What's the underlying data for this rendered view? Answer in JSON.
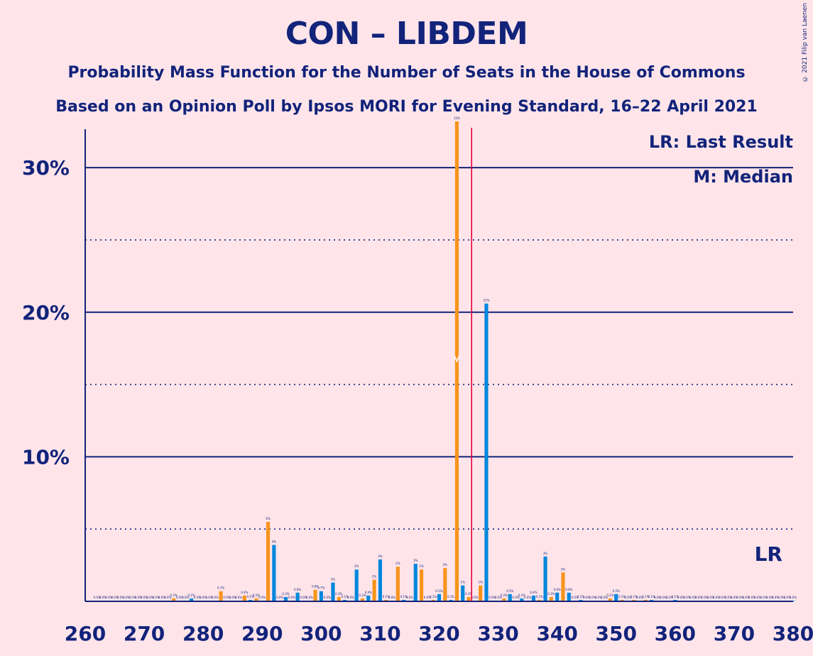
{
  "header": {
    "title": "CON – LIBDEM",
    "subtitle1": "Probability Mass Function for the Number of Seats in the House of Commons",
    "subtitle2": "Based on an Opinion Poll by Ipsos MORI for Evening Standard, 16–22 April 2021",
    "copyright": "© 2021 Filip van Laenen"
  },
  "chart_data": {
    "type": "bar",
    "title": "CON – LIBDEM",
    "xlim": [
      260,
      380
    ],
    "ylim": [
      0,
      36
    ],
    "x_ticks": [
      260,
      270,
      280,
      290,
      300,
      310,
      320,
      330,
      340,
      350,
      360,
      370,
      380
    ],
    "x_tick_labels": [
      "260",
      "270",
      "280",
      "290",
      "300",
      "310",
      "320",
      "330",
      "340",
      "350",
      "360",
      "370",
      "380"
    ],
    "y_ticks": [
      10,
      20,
      30
    ],
    "y_tick_labels": [
      "10%",
      "20%",
      "30%"
    ],
    "minor_gridlines": [
      5,
      15,
      25
    ],
    "colors": {
      "orange": "#F7941D",
      "blue": "#0087DC",
      "axis": "#12237A",
      "last_result": "#E4003B",
      "background": "#FFE5EA"
    },
    "last_result_seat": 326,
    "median_seat": 323,
    "legend": {
      "position": "top-right",
      "lr_text": "LR: Last Result",
      "m_text": "M: Median"
    },
    "lr_marker_label": "LR",
    "points": [
      {
        "x": 262,
        "y": 0.0
      },
      {
        "x": 263,
        "y": 0.0
      },
      {
        "x": 264,
        "y": 0.0
      },
      {
        "x": 265,
        "y": 0.0
      },
      {
        "x": 266,
        "y": 0.0
      },
      {
        "x": 267,
        "y": 0.0
      },
      {
        "x": 268,
        "y": 0.0
      },
      {
        "x": 269,
        "y": 0.0
      },
      {
        "x": 270,
        "y": 0.0
      },
      {
        "x": 271,
        "y": 0.0
      },
      {
        "x": 272,
        "y": 0.0
      },
      {
        "x": 273,
        "y": 0.0
      },
      {
        "x": 274,
        "y": 0.0
      },
      {
        "x": 275,
        "y": 0.2
      },
      {
        "x": 276,
        "y": 0.0
      },
      {
        "x": 277,
        "y": 0.0
      },
      {
        "x": 278,
        "y": 0.2
      },
      {
        "x": 279,
        "y": 0.0
      },
      {
        "x": 280,
        "y": 0.0
      },
      {
        "x": 281,
        "y": 0.0
      },
      {
        "x": 282,
        "y": 0.0
      },
      {
        "x": 283,
        "y": 0.7
      },
      {
        "x": 284,
        "y": 0.0
      },
      {
        "x": 285,
        "y": 0.0
      },
      {
        "x": 286,
        "y": 0.0
      },
      {
        "x": 287,
        "y": 0.4
      },
      {
        "x": 288,
        "y": 0.1
      },
      {
        "x": 289,
        "y": 0.2
      },
      {
        "x": 290,
        "y": 0.0
      },
      {
        "x": 291,
        "y": 5.5
      },
      {
        "x": 292,
        "y": 3.9
      },
      {
        "x": 293,
        "y": 0.0
      },
      {
        "x": 294,
        "y": 0.3
      },
      {
        "x": 295,
        "y": 0.0
      },
      {
        "x": 296,
        "y": 0.6
      },
      {
        "x": 297,
        "y": 0.0
      },
      {
        "x": 298,
        "y": 0.0
      },
      {
        "x": 299,
        "y": 0.8
      },
      {
        "x": 300,
        "y": 0.7
      },
      {
        "x": 301,
        "y": 0.0
      },
      {
        "x": 302,
        "y": 1.3
      },
      {
        "x": 303,
        "y": 0.3
      },
      {
        "x": 304,
        "y": 0.1
      },
      {
        "x": 305,
        "y": 0.0
      },
      {
        "x": 306,
        "y": 2.2
      },
      {
        "x": 307,
        "y": 0.2
      },
      {
        "x": 308,
        "y": 0.4
      },
      {
        "x": 309,
        "y": 1.5
      },
      {
        "x": 310,
        "y": 2.9
      },
      {
        "x": 311,
        "y": 0.1
      },
      {
        "x": 312,
        "y": 0.0
      },
      {
        "x": 313,
        "y": 2.4
      },
      {
        "x": 314,
        "y": 0.1
      },
      {
        "x": 315,
        "y": 0.0
      },
      {
        "x": 316,
        "y": 2.6
      },
      {
        "x": 317,
        "y": 2.2
      },
      {
        "x": 318,
        "y": 0.0
      },
      {
        "x": 319,
        "y": 0.1
      },
      {
        "x": 320,
        "y": 0.5
      },
      {
        "x": 321,
        "y": 2.3
      },
      {
        "x": 322,
        "y": 0.1
      },
      {
        "x": 323,
        "y": 33.2
      },
      {
        "x": 324,
        "y": 1.1
      },
      {
        "x": 325,
        "y": 0.3
      },
      {
        "x": 326,
        "y": 0.0
      },
      {
        "x": 327,
        "y": 1.1
      },
      {
        "x": 328,
        "y": 20.6
      },
      {
        "x": 329,
        "y": 0.0
      },
      {
        "x": 330,
        "y": 0.0
      },
      {
        "x": 331,
        "y": 0.2
      },
      {
        "x": 332,
        "y": 0.5
      },
      {
        "x": 333,
        "y": 0.0
      },
      {
        "x": 334,
        "y": 0.2
      },
      {
        "x": 335,
        "y": 0.0
      },
      {
        "x": 336,
        "y": 0.4
      },
      {
        "x": 337,
        "y": 0.1
      },
      {
        "x": 338,
        "y": 3.1
      },
      {
        "x": 339,
        "y": 0.3
      },
      {
        "x": 340,
        "y": 0.6
      },
      {
        "x": 341,
        "y": 2.0
      },
      {
        "x": 342,
        "y": 0.6
      },
      {
        "x": 343,
        "y": 0.0
      },
      {
        "x": 344,
        "y": 0.1
      },
      {
        "x": 345,
        "y": 0.0
      },
      {
        "x": 346,
        "y": 0.0
      },
      {
        "x": 347,
        "y": 0.0
      },
      {
        "x": 348,
        "y": 0.0
      },
      {
        "x": 349,
        "y": 0.2
      },
      {
        "x": 350,
        "y": 0.5
      },
      {
        "x": 351,
        "y": 0.1
      },
      {
        "x": 352,
        "y": 0.0
      },
      {
        "x": 353,
        "y": 0.1
      },
      {
        "x": 354,
        "y": 0.0
      },
      {
        "x": 355,
        "y": 0.1
      },
      {
        "x": 356,
        "y": 0.1
      },
      {
        "x": 357,
        "y": 0.0
      },
      {
        "x": 358,
        "y": 0.0
      },
      {
        "x": 359,
        "y": 0.0
      },
      {
        "x": 360,
        "y": 0.1
      },
      {
        "x": 361,
        "y": 0.0
      },
      {
        "x": 362,
        "y": 0.0
      },
      {
        "x": 363,
        "y": 0.0
      },
      {
        "x": 364,
        "y": 0.0
      },
      {
        "x": 365,
        "y": 0.0
      },
      {
        "x": 366,
        "y": 0.0
      },
      {
        "x": 367,
        "y": 0.0
      },
      {
        "x": 368,
        "y": 0.0
      },
      {
        "x": 369,
        "y": 0.0
      },
      {
        "x": 370,
        "y": 0.0
      },
      {
        "x": 371,
        "y": 0.0
      },
      {
        "x": 372,
        "y": 0.0
      },
      {
        "x": 373,
        "y": 0.0
      },
      {
        "x": 374,
        "y": 0.0
      },
      {
        "x": 375,
        "y": 0.0
      },
      {
        "x": 376,
        "y": 0.0
      },
      {
        "x": 377,
        "y": 0.0
      },
      {
        "x": 378,
        "y": 0.0
      },
      {
        "x": 379,
        "y": 0.0
      },
      {
        "x": 380,
        "y": 0.0
      }
    ]
  }
}
